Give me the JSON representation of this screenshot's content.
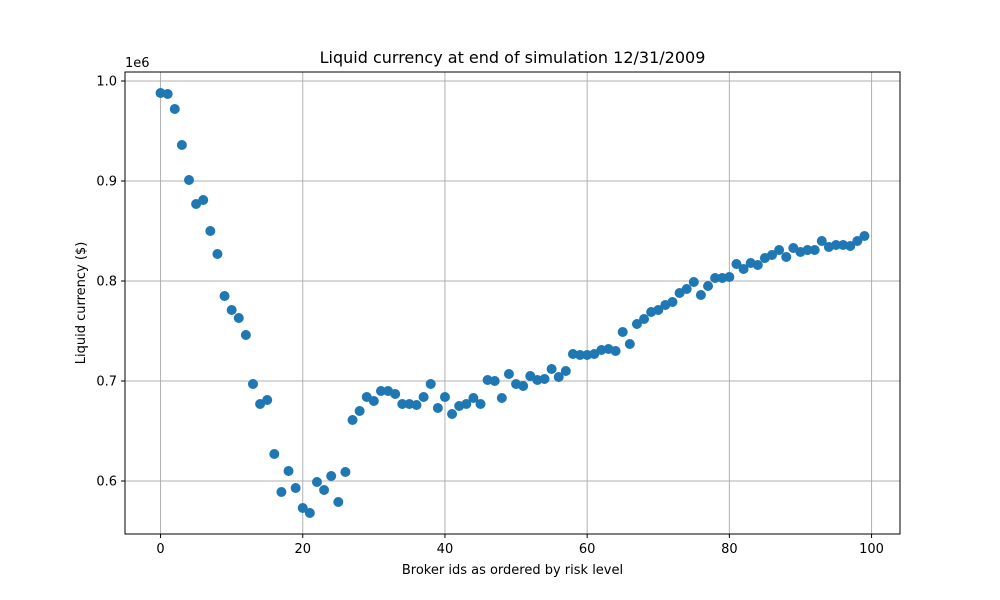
{
  "chart_data": {
    "type": "scatter",
    "title": "Liquid currency at end of simulation 12/31/2009",
    "xlabel": "Broker ids as ordered by risk level",
    "ylabel": "Liquid currency ($)",
    "y_offset_label": "1e6",
    "xlim": [
      -5,
      104
    ],
    "ylim": [
      0.547,
      1.009
    ],
    "x_ticks": [
      0,
      20,
      40,
      60,
      80,
      100
    ],
    "x_tick_labels": [
      "0",
      "20",
      "40",
      "60",
      "80",
      "100"
    ],
    "y_ticks": [
      0.6,
      0.7,
      0.8,
      0.9,
      1.0
    ],
    "y_tick_labels": [
      "0.6",
      "0.7",
      "0.8",
      "0.9",
      "1.0"
    ],
    "grid": true,
    "point_color": "#1f77b4",
    "x": [
      0,
      1,
      2,
      3,
      4,
      5,
      6,
      7,
      8,
      9,
      10,
      11,
      12,
      13,
      14,
      15,
      16,
      17,
      18,
      19,
      20,
      21,
      22,
      23,
      24,
      25,
      26,
      27,
      28,
      29,
      30,
      31,
      32,
      33,
      34,
      35,
      36,
      37,
      38,
      39,
      40,
      41,
      42,
      43,
      44,
      45,
      46,
      47,
      48,
      49,
      50,
      51,
      52,
      53,
      54,
      55,
      56,
      57,
      58,
      59,
      60,
      61,
      62,
      63,
      64,
      65,
      66,
      67,
      68,
      69,
      70,
      71,
      72,
      73,
      74,
      75,
      76,
      77,
      78,
      79,
      80,
      81,
      82,
      83,
      84,
      85,
      86,
      87,
      88,
      89,
      90,
      91,
      92,
      93,
      94,
      95,
      96,
      97,
      98,
      99
    ],
    "y": [
      0.988,
      0.987,
      0.972,
      0.936,
      0.901,
      0.877,
      0.881,
      0.85,
      0.827,
      0.785,
      0.771,
      0.763,
      0.746,
      0.697,
      0.677,
      0.681,
      0.627,
      0.589,
      0.61,
      0.593,
      0.573,
      0.568,
      0.599,
      0.591,
      0.605,
      0.579,
      0.609,
      0.661,
      0.67,
      0.684,
      0.68,
      0.69,
      0.69,
      0.687,
      0.677,
      0.677,
      0.676,
      0.684,
      0.697,
      0.673,
      0.684,
      0.667,
      0.675,
      0.677,
      0.683,
      0.677,
      0.701,
      0.7,
      0.683,
      0.707,
      0.697,
      0.695,
      0.705,
      0.701,
      0.702,
      0.712,
      0.704,
      0.71,
      0.727,
      0.726,
      0.726,
      0.727,
      0.731,
      0.732,
      0.73,
      0.749,
      0.737,
      0.757,
      0.762,
      0.769,
      0.771,
      0.776,
      0.779,
      0.788,
      0.792,
      0.799,
      0.786,
      0.795,
      0.803,
      0.803,
      0.804,
      0.817,
      0.812,
      0.818,
      0.816,
      0.823,
      0.826,
      0.831,
      0.824,
      0.833,
      0.829,
      0.831,
      0.831,
      0.84,
      0.834,
      0.836,
      0.836,
      0.835,
      0.84,
      0.845
    ]
  }
}
